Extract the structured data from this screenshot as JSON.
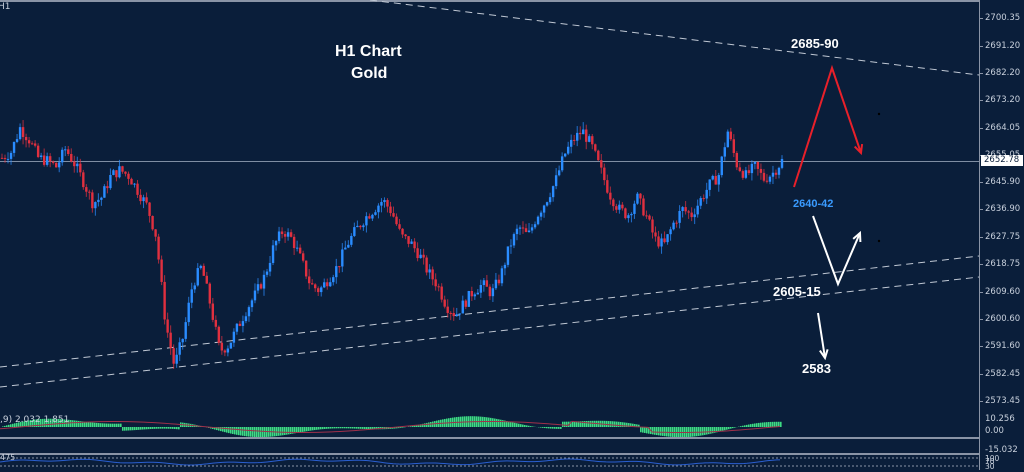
{
  "window": {
    "symbol_label": "H1"
  },
  "annotations": {
    "title_line1": "H1 Chart",
    "title_line2": "Gold",
    "level_top": "2685-90",
    "level_mid": "2640-42",
    "level_support": "2605-15",
    "level_bottom": "2583"
  },
  "colors": {
    "background": "#0a1e3a",
    "bull": "#2a8cff",
    "bear": "#e0303f",
    "scenario_red": "#e8202a",
    "scenario_white": "#ffffff",
    "level_blue": "#3a9bff",
    "macd_hist": "#3ddc84",
    "macd_signal": "#a0304a",
    "rsi_line": "#2a5fd0"
  },
  "price_axis": {
    "ticks": [
      "2700.35",
      "2691.20",
      "2682.20",
      "2673.20",
      "2664.05",
      "2655.05",
      "2645.90",
      "2636.90",
      "2627.75",
      "2618.75",
      "2609.60",
      "2600.60",
      "2591.60",
      "2582.45",
      "2573.45"
    ],
    "current_price": "2652.78"
  },
  "macd": {
    "label": ",9) 2.032 1.851",
    "ticks": [
      "10.256",
      "0.00",
      "-15.032"
    ]
  },
  "rsi": {
    "label": "475",
    "ticks": [
      "100",
      "70",
      "30"
    ]
  },
  "chart_data": {
    "type": "candlestick",
    "title": "H1 Chart Gold",
    "instrument": "Gold (XAUUSD)",
    "timeframe": "H1",
    "ylim": [
      2569,
      2705
    ],
    "y_ticks": [
      2700.35,
      2691.2,
      2682.2,
      2673.2,
      2664.05,
      2655.05,
      2645.9,
      2636.9,
      2627.75,
      2618.75,
      2609.6,
      2600.6,
      2591.6,
      2582.45,
      2573.45
    ],
    "current_price": 2652.78,
    "approx_close_path": [
      2654,
      2656,
      2664,
      2660,
      2654,
      2653,
      2651,
      2657,
      2652,
      2646,
      2639,
      2641,
      2648,
      2650,
      2648,
      2643,
      2638,
      2628,
      2600,
      2585,
      2595,
      2612,
      2618,
      2605,
      2590,
      2592,
      2598,
      2604,
      2609,
      2615,
      2625,
      2630,
      2627,
      2620,
      2612,
      2610,
      2614,
      2618,
      2625,
      2630,
      2634,
      2637,
      2640,
      2636,
      2628,
      2626,
      2622,
      2616,
      2612,
      2605,
      2602,
      2606,
      2610,
      2612,
      2609,
      2615,
      2625,
      2631,
      2628,
      2635,
      2640,
      2646,
      2655,
      2660,
      2663,
      2658,
      2650,
      2642,
      2637,
      2635,
      2641,
      2635,
      2627,
      2625,
      2632,
      2637,
      2635,
      2640,
      2645,
      2648,
      2663,
      2652,
      2648,
      2651,
      2647,
      2649,
      2653
    ],
    "trendlines": [
      {
        "name": "upper-resistance",
        "from": [
          370,
          0
        ],
        "to": [
          979,
          75
        ],
        "style": "dashed"
      },
      {
        "name": "lower-channel-top",
        "from": [
          0,
          367
        ],
        "to": [
          979,
          256
        ],
        "style": "dashed"
      },
      {
        "name": "lower-channel-bottom",
        "from": [
          0,
          387
        ],
        "to": [
          979,
          277
        ],
        "style": "dashed"
      }
    ],
    "annotations": [
      {
        "text": "2685-90",
        "type": "target-resistance"
      },
      {
        "text": "2640-42",
        "type": "pullback-zone"
      },
      {
        "text": "2605-15",
        "type": "support-zone"
      },
      {
        "text": "2583",
        "type": "breakdown-target"
      }
    ],
    "indicators": [
      {
        "name": "MACD",
        "values_shown": [
          2.032,
          1.851
        ],
        "axis": [
          10.256,
          0.0,
          -15.032
        ]
      },
      {
        "name": "RSI",
        "axis": [
          100,
          70,
          30
        ]
      }
    ]
  }
}
